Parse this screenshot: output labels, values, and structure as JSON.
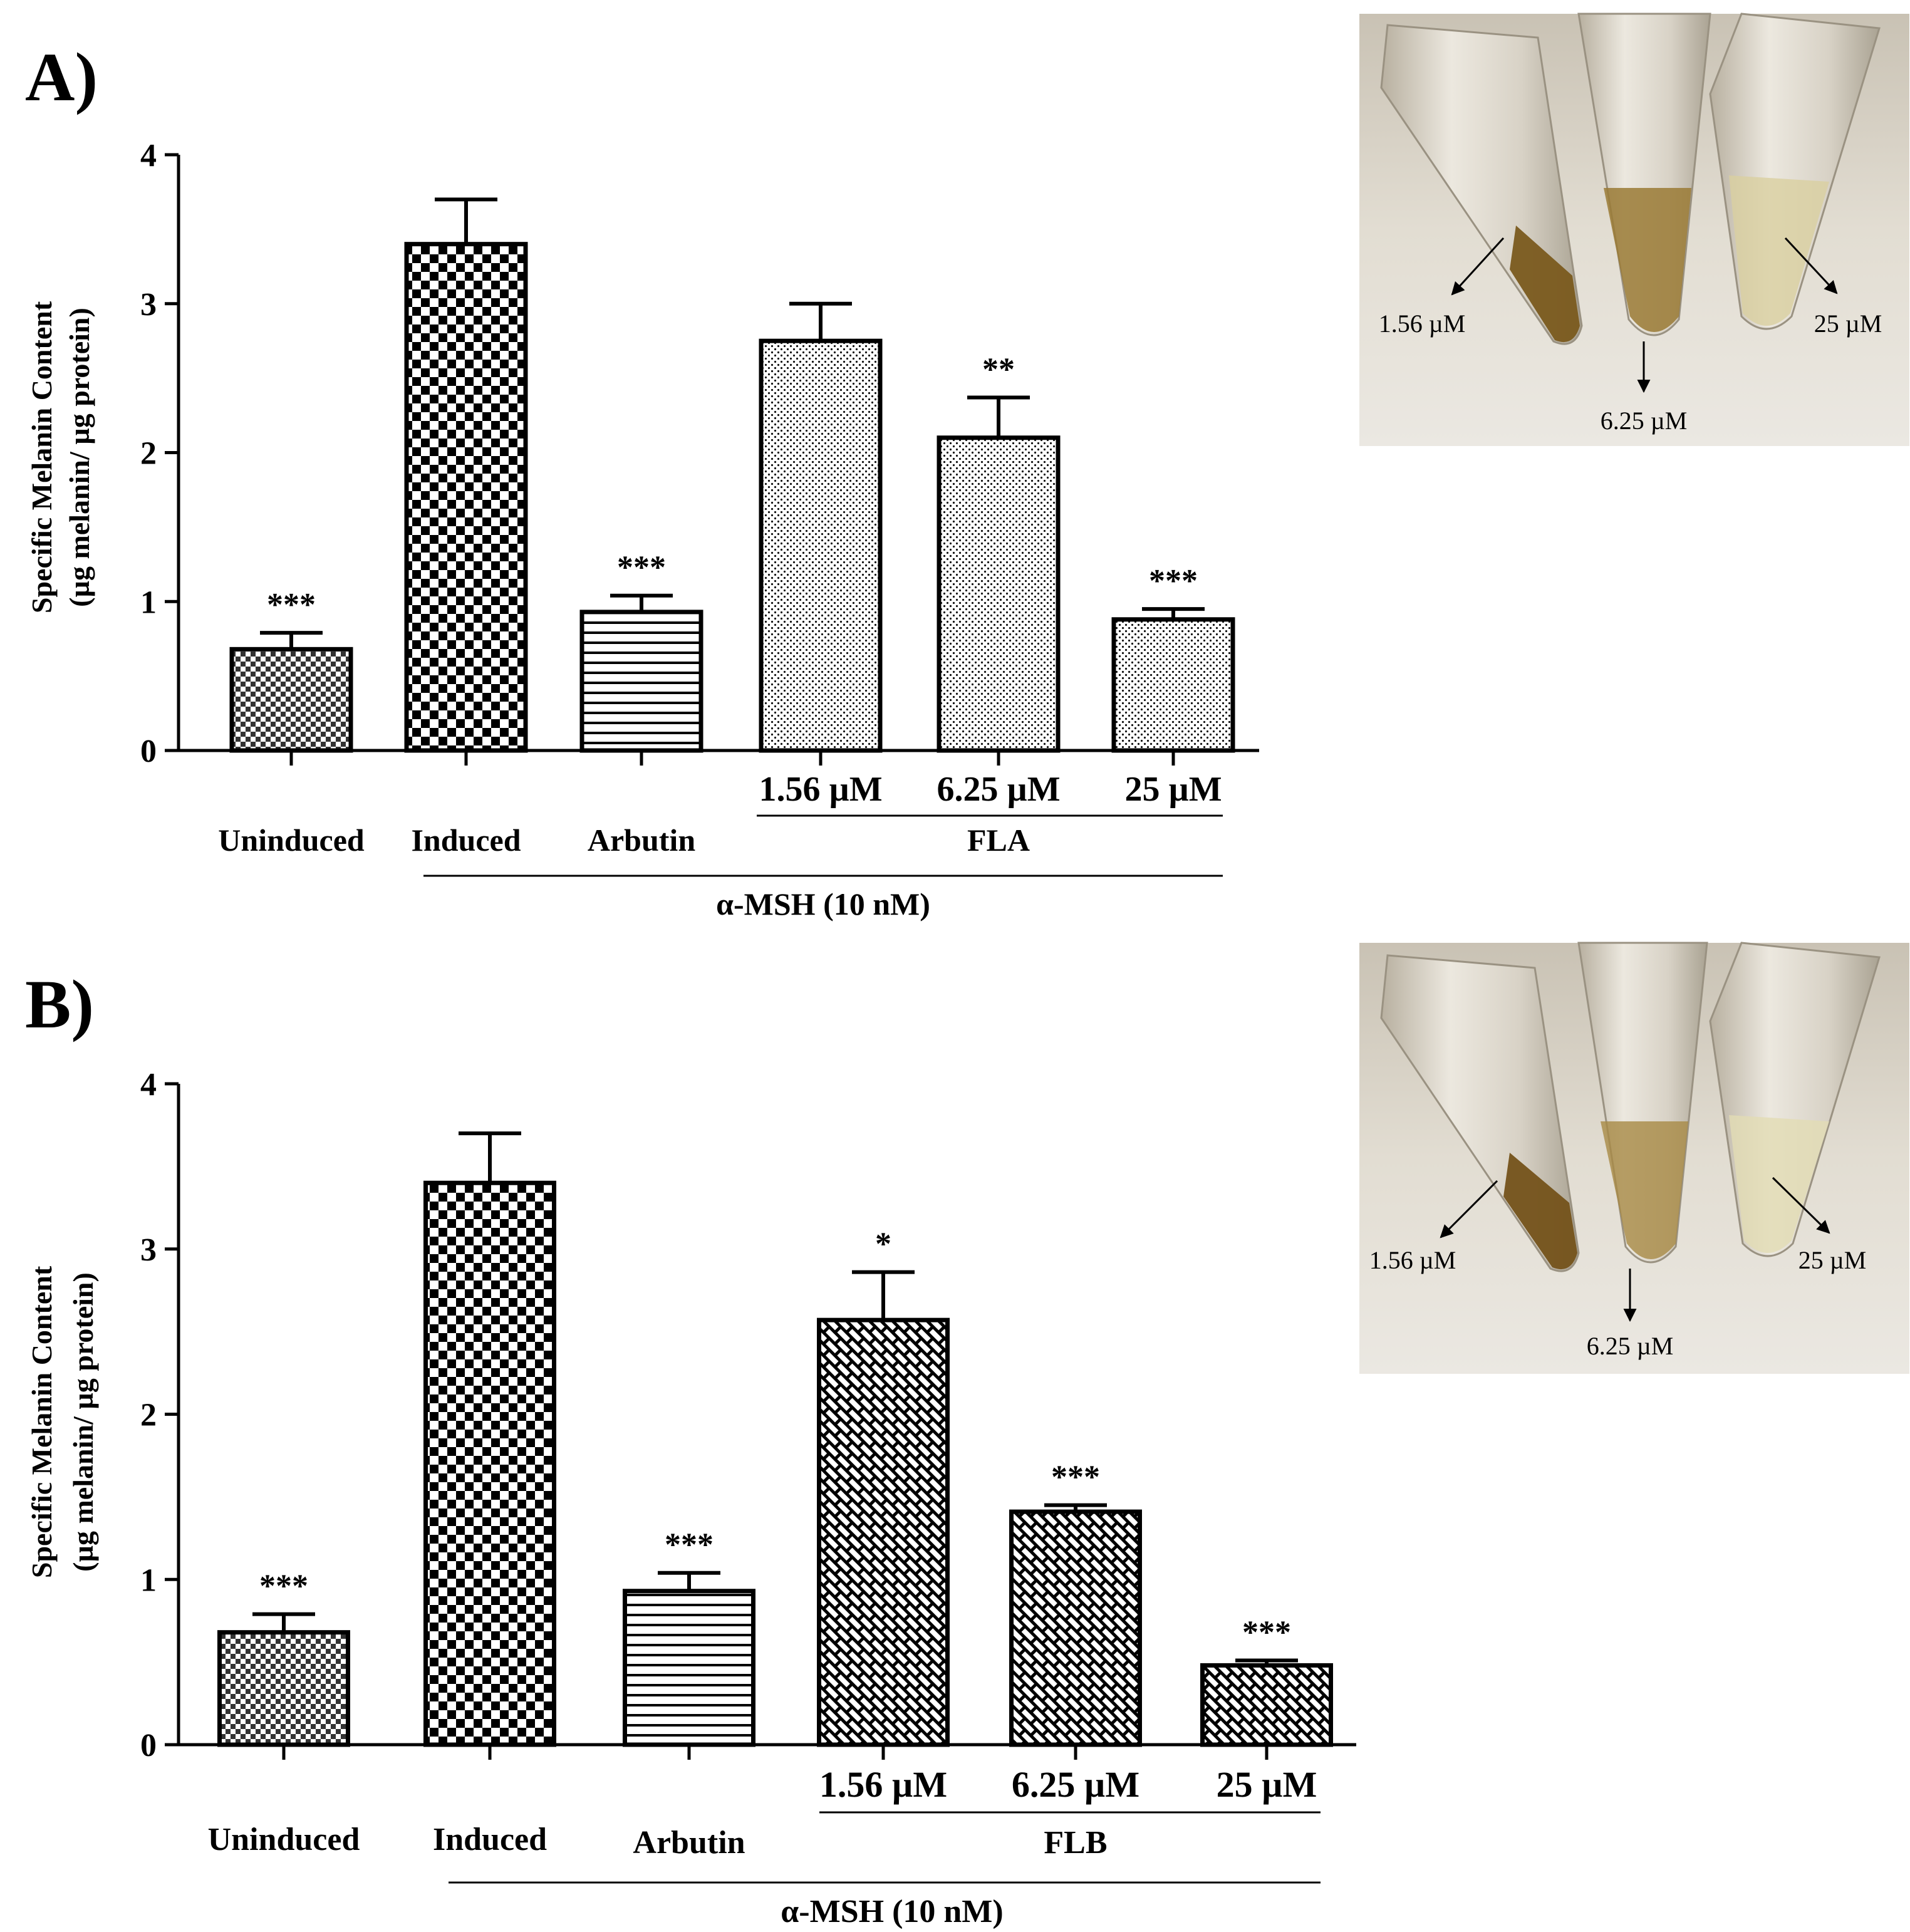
{
  "figure": {
    "panels": [
      {
        "letter": "A)",
        "photo": {
          "labels": [
            "1.56 µM",
            "6.25 µM",
            "25 µM"
          ],
          "tube_colors": [
            "#7a5a1e",
            "#9a7a35",
            "#d9cfa0"
          ]
        }
      },
      {
        "letter": "B)",
        "photo": {
          "labels": [
            "1.56 µM",
            "6.25 µM",
            "25 µM"
          ],
          "tube_colors": [
            "#74521a",
            "#a88a45",
            "#e2dcb4"
          ]
        }
      }
    ]
  },
  "chart_data": [
    {
      "type": "bar",
      "title": "",
      "ylabel_line1": "Specific Melanin Content",
      "ylabel_line2": "(µg melanin/ µg protein)",
      "ylim": [
        0,
        4
      ],
      "yticks": [
        "0",
        "1",
        "2",
        "3",
        "4"
      ],
      "categories": [
        "Uninduced",
        "Induced",
        "Arbutin",
        "1.56 µM",
        "6.25 µM",
        "25 µM"
      ],
      "values": [
        0.68,
        3.4,
        0.93,
        2.75,
        2.1,
        0.88
      ],
      "errors": [
        0.11,
        0.3,
        0.11,
        0.25,
        0.27,
        0.07
      ],
      "significance": [
        "***",
        "",
        "***",
        "",
        "**",
        "***"
      ],
      "patterns": [
        "check-fine",
        "check",
        "hlines",
        "dots",
        "dots",
        "dots"
      ],
      "compound_label": "FLA",
      "treatment_label": "α-MSH (10 nM)"
    },
    {
      "type": "bar",
      "title": "",
      "ylabel_line1": "Specific Melanin Content",
      "ylabel_line2": "(µg melanin/ µg protein)",
      "ylim": [
        0,
        4
      ],
      "yticks": [
        "0",
        "1",
        "2",
        "3",
        "4"
      ],
      "categories": [
        "Uninduced",
        "Induced",
        "Arbutin",
        "1.56 µM",
        "6.25 µM",
        "25 µM"
      ],
      "values": [
        0.68,
        3.4,
        0.93,
        2.57,
        1.41,
        0.48
      ],
      "errors": [
        0.11,
        0.3,
        0.11,
        0.29,
        0.04,
        0.03
      ],
      "significance": [
        "***",
        "",
        "***",
        "*",
        "***",
        "***"
      ],
      "patterns": [
        "check-fine",
        "check",
        "hlines",
        "brick",
        "brick",
        "brick"
      ],
      "compound_label": "FLB",
      "treatment_label": "α-MSH (10 nM)"
    }
  ]
}
